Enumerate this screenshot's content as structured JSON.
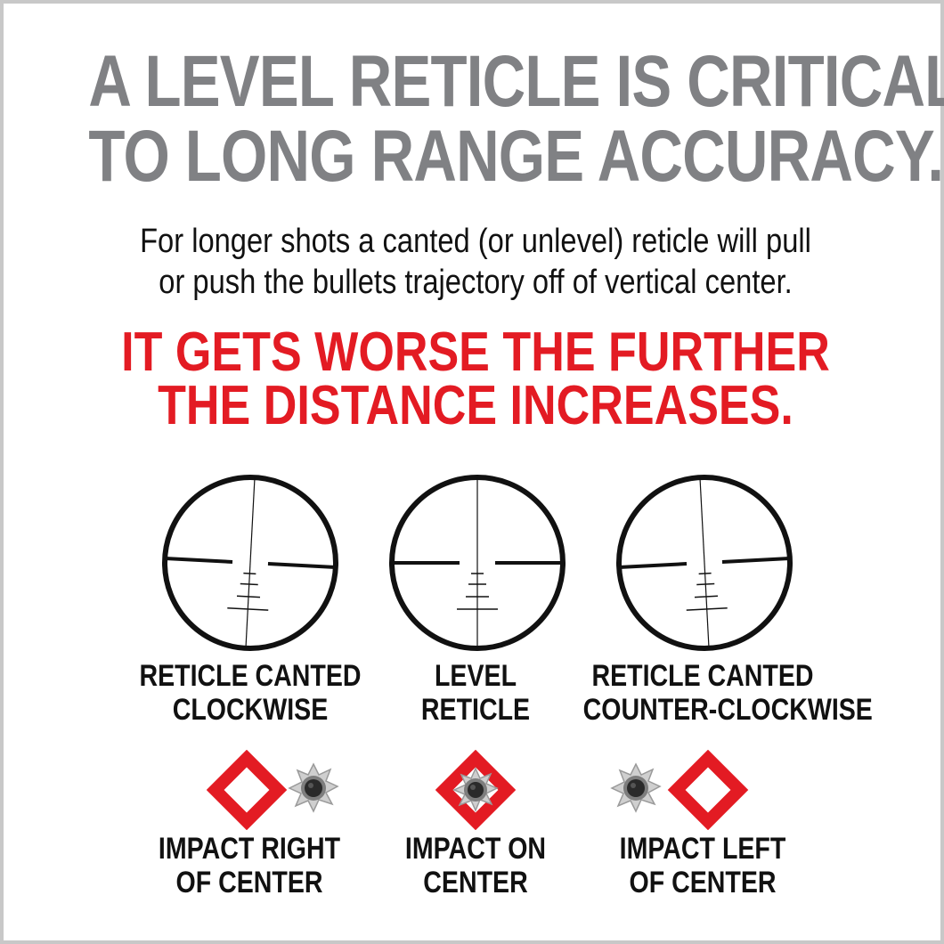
{
  "headline": {
    "line1": "A LEVEL RETICLE IS CRITICAL",
    "line2": "TO LONG RANGE ACCURACY."
  },
  "subtext": {
    "line1": "For longer shots a canted (or unlevel) reticle will pull",
    "line2": "or push the bullets trajectory off of vertical center."
  },
  "warning": {
    "line1": "IT GETS WORSE THE FURTHER",
    "line2": "THE DISTANCE INCREASES."
  },
  "colors": {
    "headline": "#808184",
    "warning": "#e31b23",
    "text": "#111111",
    "diamond": "#e31b23",
    "border": "#c8c8c8"
  },
  "reticles": [
    {
      "label_line1": "RETICLE CANTED",
      "label_line2": "CLOCKWISE",
      "cant": "clockwise"
    },
    {
      "label_line1": "LEVEL",
      "label_line2": "RETICLE",
      "cant": "level"
    },
    {
      "label_line1": "RETICLE CANTED",
      "label_line2": "COUNTER-CLOCKWISE",
      "cant": "counter-clockwise"
    }
  ],
  "impacts": [
    {
      "label_line1": "IMPACT RIGHT",
      "label_line2": "OF CENTER",
      "icon": "bullet-hole-icon",
      "position": "right"
    },
    {
      "label_line1": "IMPACT ON",
      "label_line2": "CENTER",
      "icon": "bullet-hole-icon",
      "position": "center"
    },
    {
      "label_line1": "IMPACT LEFT",
      "label_line2": "OF CENTER",
      "icon": "bullet-hole-icon",
      "position": "left"
    }
  ]
}
